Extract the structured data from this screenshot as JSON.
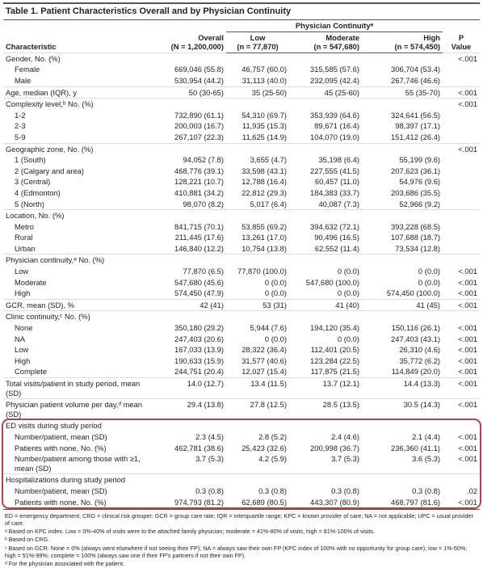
{
  "title": "Table 1. Patient Characteristics Overall and by Physician Continuity",
  "header": {
    "characteristic": "Characteristic",
    "overall": [
      "Overall",
      "(N = 1,200,000)"
    ],
    "group": "Physician Continuityᵃ",
    "groups": [
      [
        "Low",
        "(n = 77,870)"
      ],
      [
        "Moderate",
        "(n = 547,680)"
      ],
      [
        "High",
        "(n = 574,450)"
      ]
    ],
    "p": [
      "P",
      "Value"
    ]
  },
  "sections": [
    {
      "heading": [
        "Gender, No. (%)",
        null,
        null,
        null,
        null,
        "<.001"
      ],
      "rows": [
        [
          "Female",
          "669,046 (55.8)",
          "46,757 (60.0)",
          "315,585 (57.6)",
          "306,704 (53.4)",
          null
        ],
        [
          "Male",
          "530,954 (44.2)",
          "31,113 (40.0)",
          "232,095 (42.4)",
          "267,746 (46.6)",
          null
        ]
      ]
    },
    {
      "heading": [
        "Age, median (IQR), y",
        "50 (30-65)",
        "35 (25-50)",
        "45 (25-60)",
        "55 (35-70)",
        "<.001"
      ],
      "rows": []
    },
    {
      "heading": [
        "Complexity level,ᵇ No. (%)",
        null,
        null,
        null,
        null,
        "<.001"
      ],
      "rows": [
        [
          "1-2",
          "732,890 (61.1)",
          "54,310 (69.7)",
          "353,939 (64.6)",
          "324,641 (56.5)",
          null
        ],
        [
          "2-3",
          "200,003 (16.7)",
          "11,935 (15.3)",
          "89,671 (16.4)",
          "98,397 (17.1)",
          null
        ],
        [
          "5-9",
          "267,107 (22.3)",
          "11,625 (14.9)",
          "104,070 (19.0)",
          "151,412 (26.4)",
          null
        ]
      ]
    },
    {
      "heading": [
        "Geographic zone, No. (%)",
        null,
        null,
        null,
        null,
        "<.001"
      ],
      "rows": [
        [
          "1 (South)",
          "94,052 (7.8)",
          "3,655 (4.7)",
          "35,198 (6.4)",
          "55,199 (9.6)",
          null
        ],
        [
          "2 (Calgary and area)",
          "468,776 (39.1)",
          "33,598 (43.1)",
          "227,555 (41.5)",
          "207,623 (36.1)",
          null
        ],
        [
          "3 (Central)",
          "128,221 (10.7)",
          "12,788 (16.4)",
          "60,457 (11.0)",
          "54,976 (9.6)",
          null
        ],
        [
          "4 (Edmonton)",
          "410,881 (34.2)",
          "22,812 (29.3)",
          "184,383 (33.7)",
          "203,686 (35.5)",
          null
        ],
        [
          "5 (North)",
          "98,070 (8.2)",
          "5,017 (6.4)",
          "40,087 (7.3)",
          "52,966 (9.2)",
          null
        ]
      ]
    },
    {
      "heading": [
        "Location, No. (%)",
        null,
        null,
        null,
        null,
        null
      ],
      "rows": [
        [
          "Metro",
          "841,715 (70.1)",
          "53,855 (69.2)",
          "394,632 (72.1)",
          "393,228 (68.5)",
          null
        ],
        [
          "Rural",
          "211,445 (17.6)",
          "13,261 (17.0)",
          "90,496 (16.5)",
          "107,688 (18.7)",
          null
        ],
        [
          "Urban",
          "146,840 (12.2)",
          "10,754 (13.8)",
          "62,552 (11.4)",
          "73,534 (12.8)",
          null
        ]
      ]
    },
    {
      "heading": [
        "Physician continuity,ᵃ No. (%)",
        null,
        null,
        null,
        null,
        null
      ],
      "rows": [
        [
          "Low",
          "77,870 (6.5)",
          "77,870 (100.0)",
          "0 (0.0)",
          "0 (0.0)",
          "<.001"
        ],
        [
          "Moderate",
          "547,680 (45.6)",
          "0 (0.0)",
          "547,680 (100.0)",
          "0 (0.0)",
          "<.001"
        ],
        [
          "High",
          "574,450 (47.9)",
          "0 (0.0)",
          "0 (0.0)",
          "574,450 (100.0)",
          "<.001"
        ]
      ]
    },
    {
      "heading": [
        "GCR, mean (SD), %",
        "42 (41)",
        "53 (31)",
        "41 (40)",
        "41 (45)",
        "<.001"
      ],
      "rows": []
    },
    {
      "heading": [
        "Clinic continuity,ᶜ No. (%)",
        null,
        null,
        null,
        null,
        null
      ],
      "rows": [
        [
          "None",
          "350,180 (29.2)",
          "5,944 (7.6)",
          "194,120 (35.4)",
          "150,116 (26.1)",
          "<.001"
        ],
        [
          "NA",
          "247,403 (20.6)",
          "0 (0.0)",
          "0 (0.0)",
          "247,403 (43.1)",
          "<.001"
        ],
        [
          "Low",
          "167,033 (13.9)",
          "28,322 (36.4)",
          "112,401 (20.5)",
          "26,310 (4.6)",
          "<.001"
        ],
        [
          "High",
          "190,633 (15.9)",
          "31,577 (40.6)",
          "123,284 (22.5)",
          "35,772 (6.2)",
          "<.001"
        ],
        [
          "Complete",
          "244,751 (20.4)",
          "12,027 (15.4)",
          "117,875 (21.5)",
          "114,849 (20.0)",
          "<.001"
        ]
      ]
    },
    {
      "heading": [
        "Total visits/patient in study period, mean (SD)",
        "14.0 (12.7)",
        "13.4 (11.5)",
        "13.7 (12.1)",
        "14.4 (13.3)",
        "<.001"
      ],
      "rows": []
    },
    {
      "heading": [
        "Physician patient volume per day,ᵈ mean (SD)",
        "29.4 (13.8)",
        "27.8 (12.5)",
        "28.5 (13.5)",
        "30.5 (14.3)",
        "<.001"
      ],
      "rows": []
    },
    {
      "heading": [
        "ED visits during study period",
        null,
        null,
        null,
        null,
        null
      ],
      "rows": [
        [
          "Number/patient, mean (SD)",
          "2.3 (4.5)",
          "2.8 (5.2)",
          "2.4 (4.6)",
          "2.1 (4.4)",
          "<.001"
        ],
        [
          "Patients with none, No. (%)",
          "462,781 (38.6)",
          "25,423 (32.6)",
          "200,998 (36.7)",
          "236,360 (41.1)",
          "<.001"
        ],
        [
          "Number/patient among those with ≥1, mean (SD)",
          "3.7 (5.3)",
          "4.2 (5.9)",
          "3.7 (5.3)",
          "3.6 (5.3)",
          "<.001"
        ]
      ]
    },
    {
      "heading": [
        "Hospitalizations during study period",
        null,
        null,
        null,
        null,
        null
      ],
      "rows": [
        [
          "Number/patient, mean (SD)",
          "0.3 (0.8)",
          "0.3 (0.8)",
          "0.3 (0.8)",
          "0.3 (0.8)",
          ".02"
        ],
        [
          "Patients with none, No. (%)",
          "974,793 (81.2)",
          "62,689 (80.5)",
          "443,307 (80.9)",
          "468,797 (81.6)",
          "<.001"
        ]
      ]
    }
  ],
  "footnotes": [
    "ED = emergency department; CRG = clinical risk grouper; GCR = group care rate; IQR = interquartile range; KPC = known provider of care; NA = not applicable; UPC = usual provider of care.",
    "ᵃ Based on KPC index. Low = 0%-40% of visits were to the attached family physician; moderate = 41%-80% of visits; high = 81%-100% of visits.",
    "ᵇ Based on CRG.",
    "ᶜ Based on GCR. None = 0% (always went elsewhere if not seeing their FP); NA = always saw their own FP (KPC index of 100% with no opportunity for group care); low = 1%-50%; high = 51%-99%; complete = 100% (always saw one if their FP's partners if not their own FP).",
    "ᵈ For the physician associated with the patient."
  ]
}
